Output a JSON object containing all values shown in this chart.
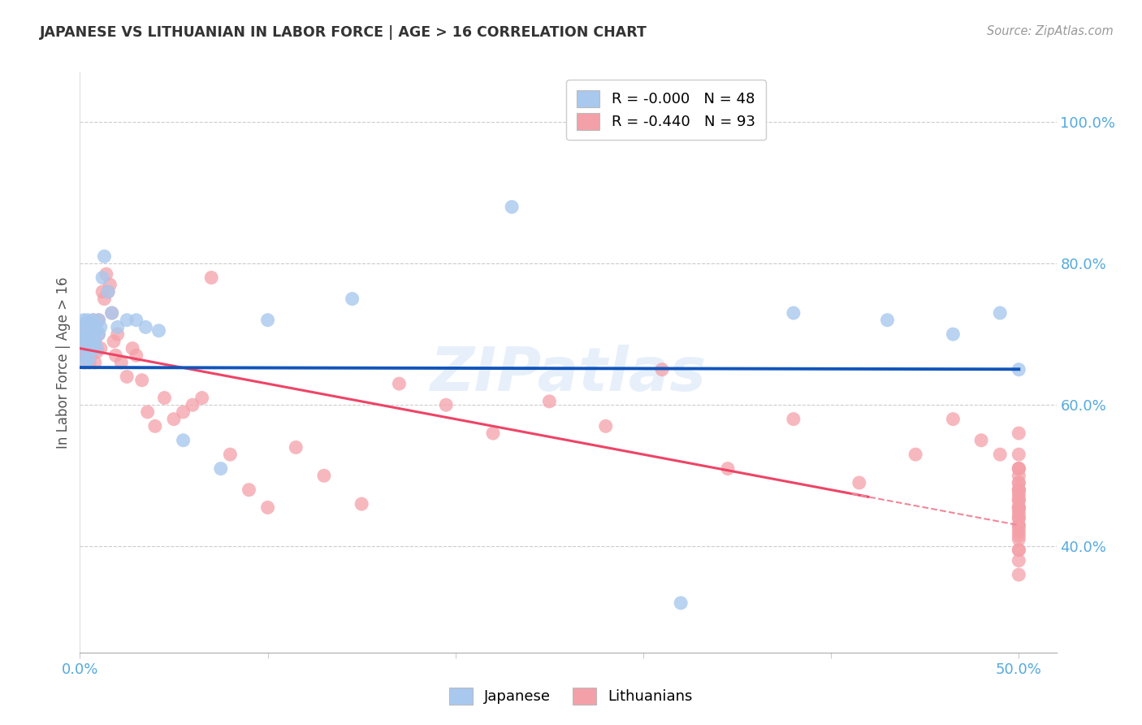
{
  "title": "JAPANESE VS LITHUANIAN IN LABOR FORCE | AGE > 16 CORRELATION CHART",
  "source": "Source: ZipAtlas.com",
  "ylabel": "In Labor Force | Age > 16",
  "xlim": [
    0.0,
    0.52
  ],
  "ylim": [
    0.25,
    1.07
  ],
  "ytick_vals": [
    0.4,
    0.6,
    0.8,
    1.0
  ],
  "ytick_labels": [
    "40.0%",
    "60.0%",
    "80.0%",
    "100.0%"
  ],
  "xtick_vals": [
    0.0,
    0.1,
    0.2,
    0.3,
    0.4,
    0.5
  ],
  "xtick_labels": [
    "0.0%",
    "",
    "",
    "",
    "",
    "50.0%"
  ],
  "blue_color": "#A8C8EE",
  "pink_color": "#F4A0A8",
  "blue_line_color": "#1155BB",
  "pink_line_color": "#EE4466",
  "pink_line_dash_color": "#EE8899",
  "grid_color": "#CCCCCC",
  "axis_tick_color": "#55AADD",
  "title_color": "#333333",
  "source_color": "#999999",
  "ylabel_color": "#555555",
  "watermark": "ZIPatlas",
  "watermark_color": "#AACCEE",
  "legend_blue_R": "R = -0.000",
  "legend_blue_N": "N = 48",
  "legend_pink_R": "R = -0.440",
  "legend_pink_N": "N = 93",
  "jap_x": [
    0.001,
    0.001,
    0.002,
    0.002,
    0.002,
    0.003,
    0.003,
    0.003,
    0.003,
    0.004,
    0.004,
    0.004,
    0.005,
    0.005,
    0.005,
    0.006,
    0.006,
    0.006,
    0.007,
    0.007,
    0.007,
    0.008,
    0.008,
    0.009,
    0.009,
    0.01,
    0.01,
    0.011,
    0.012,
    0.013,
    0.015,
    0.017,
    0.02,
    0.025,
    0.03,
    0.035,
    0.042,
    0.055,
    0.075,
    0.1,
    0.145,
    0.23,
    0.32,
    0.38,
    0.43,
    0.465,
    0.49,
    0.5
  ],
  "jap_y": [
    0.695,
    0.71,
    0.67,
    0.695,
    0.72,
    0.685,
    0.7,
    0.715,
    0.66,
    0.68,
    0.7,
    0.72,
    0.665,
    0.69,
    0.71,
    0.68,
    0.7,
    0.715,
    0.685,
    0.7,
    0.72,
    0.69,
    0.71,
    0.68,
    0.705,
    0.7,
    0.72,
    0.71,
    0.78,
    0.81,
    0.76,
    0.73,
    0.71,
    0.72,
    0.72,
    0.71,
    0.705,
    0.55,
    0.51,
    0.72,
    0.75,
    0.88,
    0.32,
    0.73,
    0.72,
    0.7,
    0.73,
    0.65
  ],
  "lit_x": [
    0.001,
    0.001,
    0.002,
    0.002,
    0.003,
    0.003,
    0.004,
    0.004,
    0.005,
    0.005,
    0.006,
    0.006,
    0.007,
    0.007,
    0.008,
    0.008,
    0.009,
    0.01,
    0.01,
    0.011,
    0.012,
    0.013,
    0.014,
    0.015,
    0.016,
    0.017,
    0.018,
    0.019,
    0.02,
    0.022,
    0.025,
    0.028,
    0.03,
    0.033,
    0.036,
    0.04,
    0.045,
    0.05,
    0.055,
    0.06,
    0.065,
    0.07,
    0.08,
    0.09,
    0.1,
    0.115,
    0.13,
    0.15,
    0.17,
    0.195,
    0.22,
    0.25,
    0.28,
    0.31,
    0.345,
    0.38,
    0.415,
    0.445,
    0.465,
    0.48,
    0.49,
    0.5,
    0.5,
    0.5,
    0.5,
    0.5,
    0.5,
    0.5,
    0.5,
    0.5,
    0.5,
    0.5,
    0.5,
    0.5,
    0.5,
    0.5,
    0.5,
    0.5,
    0.5,
    0.5,
    0.5,
    0.5,
    0.5,
    0.5,
    0.5,
    0.5,
    0.5,
    0.5,
    0.5,
    0.5,
    0.5,
    0.5,
    0.5
  ],
  "lit_y": [
    0.68,
    0.71,
    0.66,
    0.695,
    0.67,
    0.695,
    0.68,
    0.71,
    0.66,
    0.695,
    0.675,
    0.71,
    0.68,
    0.72,
    0.66,
    0.69,
    0.675,
    0.7,
    0.72,
    0.68,
    0.76,
    0.75,
    0.785,
    0.76,
    0.77,
    0.73,
    0.69,
    0.67,
    0.7,
    0.66,
    0.64,
    0.68,
    0.67,
    0.635,
    0.59,
    0.57,
    0.61,
    0.58,
    0.59,
    0.6,
    0.61,
    0.78,
    0.53,
    0.48,
    0.455,
    0.54,
    0.5,
    0.46,
    0.63,
    0.6,
    0.56,
    0.605,
    0.57,
    0.65,
    0.51,
    0.58,
    0.49,
    0.53,
    0.58,
    0.55,
    0.53,
    0.51,
    0.475,
    0.49,
    0.53,
    0.56,
    0.48,
    0.455,
    0.5,
    0.465,
    0.43,
    0.48,
    0.51,
    0.455,
    0.395,
    0.44,
    0.42,
    0.48,
    0.51,
    0.44,
    0.395,
    0.36,
    0.43,
    0.465,
    0.445,
    0.49,
    0.415,
    0.455,
    0.41,
    0.38,
    0.425,
    0.45,
    0.47
  ],
  "jap_line_slope": -0.005,
  "jap_line_intercept": 0.653,
  "lit_line_x0": 0.0,
  "lit_line_y0": 0.68,
  "lit_line_x1": 0.5,
  "lit_line_y1": 0.43
}
